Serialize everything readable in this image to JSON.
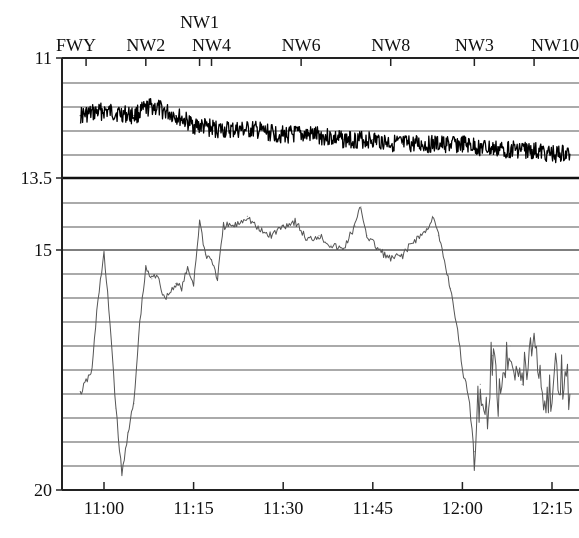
{
  "chart_data": [
    {
      "type": "line",
      "title": "",
      "xlabel": "",
      "ylabel": "",
      "x_ticks": [
        "11:00",
        "11:15",
        "11:30",
        "11:45",
        "12:00",
        "12:15"
      ],
      "y_ticks": [
        "11",
        "13.5",
        "15",
        "20"
      ],
      "y_reversed": true,
      "ylim": [
        20,
        11
      ],
      "grid": true,
      "event_labels": [
        {
          "label": "FWY",
          "time": "10:57"
        },
        {
          "label": "NW2",
          "time": "11:07"
        },
        {
          "label": "NW1",
          "time": "11:16"
        },
        {
          "label": "NW4",
          "time": "11:18"
        },
        {
          "label": "NW6",
          "time": "11:33"
        },
        {
          "label": "NW8",
          "time": "11:48"
        },
        {
          "label": "NW3",
          "time": "12:02"
        },
        {
          "label": "NW10",
          "time": "12:12"
        }
      ],
      "series": [
        {
          "color": "#000000",
          "x": [
            "10:56",
            "11:00",
            "11:05",
            "11:08",
            "11:12",
            "11:15",
            "11:20",
            "11:25",
            "11:30",
            "11:35",
            "11:40",
            "11:45",
            "11:50",
            "11:55",
            "12:00",
            "12:05",
            "12:10",
            "12:15",
            "12:18"
          ],
          "y": [
            12.2,
            12.1,
            12.2,
            12.0,
            12.2,
            12.4,
            12.5,
            12.5,
            12.6,
            12.6,
            12.7,
            12.7,
            12.8,
            12.8,
            12.8,
            12.9,
            12.9,
            13.0,
            13.0
          ]
        },
        {
          "color": "#555555",
          "x": [
            "10:56",
            "10:58",
            "10:59",
            "11:00",
            "11:01",
            "11:02",
            "11:03",
            "11:04",
            "11:05",
            "11:06",
            "11:07",
            "11:08",
            "11:09",
            "11:10",
            "11:11",
            "11:12",
            "11:13",
            "11:14",
            "11:15",
            "11:16",
            "11:17",
            "11:18",
            "11:19",
            "11:20",
            "11:22",
            "11:24",
            "11:26",
            "11:28",
            "11:30",
            "11:32",
            "11:34",
            "11:36",
            "11:38",
            "11:40",
            "11:42",
            "11:43",
            "11:44",
            "11:46",
            "11:48",
            "11:50",
            "11:52",
            "11:54",
            "11:55",
            "11:56",
            "11:58",
            "11:59",
            "12:00",
            "12:01",
            "12:02",
            "12:03",
            "12:04",
            "12:05",
            "12:06",
            "12:08",
            "12:10",
            "12:12",
            "12:14",
            "12:16",
            "12:18"
          ],
          "y": [
            18.0,
            17.5,
            16.0,
            15.1,
            16.5,
            18.3,
            19.7,
            18.8,
            18.2,
            16.5,
            15.4,
            15.6,
            15.5,
            16.0,
            15.9,
            15.7,
            15.8,
            15.4,
            15.7,
            14.4,
            15.1,
            15.2,
            15.6,
            14.5,
            14.5,
            14.3,
            14.6,
            14.7,
            14.5,
            14.4,
            14.8,
            14.7,
            14.9,
            15.0,
            14.5,
            14.1,
            14.7,
            15.0,
            15.2,
            15.1,
            14.8,
            14.6,
            14.3,
            14.7,
            15.8,
            16.5,
            17.5,
            18.0,
            19.2,
            17.8,
            18.5,
            17.2,
            18.0,
            17.0,
            17.8,
            16.8,
            18.3,
            17.5,
            18.0
          ]
        }
      ]
    }
  ]
}
